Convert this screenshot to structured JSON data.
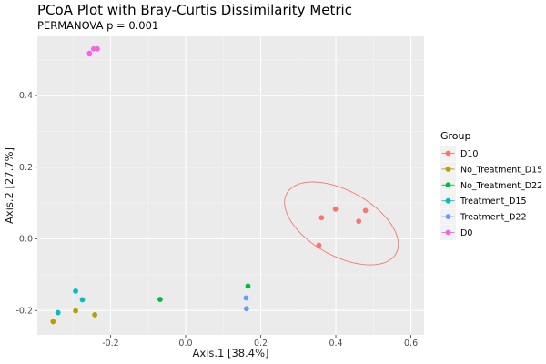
{
  "chart_data": {
    "type": "scatter",
    "title": "PCoA Plot with Bray-Curtis Dissimilarity Metric",
    "subtitle": "PERMANOVA p = 0.001",
    "xlabel": "Axis.1  [38.4%]",
    "ylabel": "Axis.2  [27.7%]",
    "xlim": [
      -0.395,
      0.635
    ],
    "ylim": [
      -0.268,
      0.565
    ],
    "xticks": [
      -0.2,
      0.0,
      0.2,
      0.4,
      0.6
    ],
    "xtick_labels": [
      "-0.2",
      "0.0",
      "0.2",
      "0.4",
      "0.6"
    ],
    "yticks": [
      -0.2,
      0.0,
      0.2,
      0.4
    ],
    "ytick_labels": [
      "-0.2",
      "0.0",
      "0.2",
      "0.4"
    ],
    "grid": true,
    "legend_title": "Group",
    "legend_position": "right",
    "series": [
      {
        "name": "D10",
        "color": "#F8766D",
        "points": [
          {
            "x": 0.355,
            "y": -0.018
          },
          {
            "x": 0.362,
            "y": 0.059
          },
          {
            "x": 0.399,
            "y": 0.083
          },
          {
            "x": 0.461,
            "y": 0.049
          },
          {
            "x": 0.479,
            "y": 0.079
          }
        ]
      },
      {
        "name": "No_Treatment_D15",
        "color": "#B79F00",
        "points": [
          {
            "x": -0.353,
            "y": -0.231
          },
          {
            "x": -0.293,
            "y": -0.201
          },
          {
            "x": -0.242,
            "y": -0.212
          }
        ]
      },
      {
        "name": "No_Treatment_D22",
        "color": "#00BA38",
        "points": [
          {
            "x": -0.068,
            "y": -0.169
          },
          {
            "x": 0.166,
            "y": -0.132
          }
        ]
      },
      {
        "name": "Treatment_D15",
        "color": "#00BFC4",
        "points": [
          {
            "x": -0.34,
            "y": -0.206
          },
          {
            "x": -0.293,
            "y": -0.146
          },
          {
            "x": -0.275,
            "y": -0.17
          }
        ]
      },
      {
        "name": "Treatment_D22",
        "color": "#619CFF",
        "points": [
          {
            "x": 0.161,
            "y": -0.165
          },
          {
            "x": 0.162,
            "y": -0.195
          }
        ]
      },
      {
        "name": "D0",
        "color": "#F564E3",
        "points": [
          {
            "x": -0.256,
            "y": 0.518
          },
          {
            "x": -0.245,
            "y": 0.53
          },
          {
            "x": -0.235,
            "y": 0.53
          }
        ]
      }
    ],
    "ellipse": {
      "group": "D10",
      "cx": 0.415,
      "cy": 0.043,
      "rx": 0.168,
      "ry": 0.09,
      "angle_deg": -30.8,
      "color": "#F8766D"
    }
  }
}
